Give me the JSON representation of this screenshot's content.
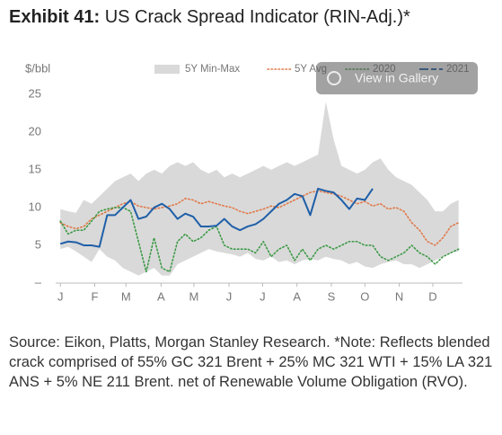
{
  "exhibit": "Exhibit 41:",
  "overlay": {
    "label": "View in Gallery"
  },
  "source": "Source: Eikon, Platts, Morgan Stanley Research. *Note: Reflects blended crack comprised of 55% GC 321 Brent + 25% MC 321 WTI + 15% LA 321 ANS + 5% NE 211 Brent. net of Renewable Volume Obligation (RVO).",
  "chart_data": {
    "type": "line",
    "title": "US Crack Spread Indicator (RIN-Adj.)*",
    "y_label": "$/bbl",
    "x": [
      1,
      2,
      3,
      4,
      5,
      6,
      7,
      8,
      9,
      10,
      11,
      12,
      13,
      14,
      15,
      16,
      17,
      18,
      19,
      20,
      21,
      22,
      23,
      24,
      25,
      26,
      27,
      28,
      29,
      30,
      31,
      32,
      33,
      34,
      35,
      36,
      37,
      38,
      39,
      40,
      41,
      42,
      43,
      44,
      45,
      46,
      47,
      48,
      49,
      50,
      51,
      52
    ],
    "xlim": [
      0.4,
      52.5
    ],
    "xticks": [
      {
        "value": 1,
        "label": "J"
      },
      {
        "value": 5.4,
        "label": "F"
      },
      {
        "value": 9.4,
        "label": "M"
      },
      {
        "value": 13.9,
        "label": "A"
      },
      {
        "value": 18.1,
        "label": "M"
      },
      {
        "value": 22.6,
        "label": "J"
      },
      {
        "value": 26.9,
        "label": "J"
      },
      {
        "value": 31.3,
        "label": "A"
      },
      {
        "value": 35.7,
        "label": "S"
      },
      {
        "value": 40,
        "label": "O"
      },
      {
        "value": 44.4,
        "label": "N"
      },
      {
        "value": 48.7,
        "label": "D"
      }
    ],
    "ylim": [
      0,
      27
    ],
    "yticks": [
      {
        "value": 0,
        "label": "–"
      },
      5,
      10,
      15,
      20,
      25
    ],
    "legend": "top",
    "series": [
      {
        "name": "5Y Min-Max",
        "color": "#d9d9d9",
        "style": "band",
        "high": [
          9.8,
          9.5,
          9.3,
          11,
          10.5,
          11.5,
          12.5,
          13.5,
          14,
          14.5,
          13.5,
          14.5,
          15,
          14.5,
          15.5,
          16,
          15.5,
          16,
          15,
          14.5,
          15,
          14,
          14.5,
          14,
          14.5,
          15,
          15.5,
          15,
          15.5,
          16,
          15.5,
          16,
          16.5,
          17,
          24,
          19,
          15.5,
          15,
          14.5,
          15,
          16,
          16.5,
          15,
          14,
          13.5,
          13,
          12,
          11,
          9.5,
          9.5,
          10.5,
          11
        ],
        "low": [
          4.5,
          4.8,
          4.2,
          3.5,
          2.8,
          4.5,
          3.5,
          3,
          2,
          1.5,
          1,
          1.5,
          2,
          1,
          1,
          2.5,
          3,
          3.5,
          4,
          4.5,
          4.2,
          4,
          3.8,
          3.5,
          4,
          3.2,
          3,
          3.5,
          2.8,
          3,
          2.5,
          3,
          3.2,
          3,
          3.5,
          3.2,
          3,
          2.5,
          2.8,
          2.2,
          2,
          2.5,
          2.8,
          3,
          2.5,
          2.5,
          2,
          2.5,
          3,
          3.5,
          4,
          4.2
        ]
      },
      {
        "name": "5Y Avg",
        "color": "#e07a4a",
        "style": "dotted",
        "values": [
          8,
          7.5,
          7.2,
          7.5,
          8.5,
          9,
          9.5,
          10,
          10.5,
          10.8,
          10.2,
          10,
          9.8,
          10,
          10.2,
          10.5,
          11.2,
          11,
          10.5,
          10.8,
          10.5,
          10.2,
          10,
          9.5,
          9.2,
          9.5,
          9.8,
          10.2,
          10,
          10.5,
          11,
          11.5,
          12,
          12.2,
          12,
          11.8,
          11.5,
          11,
          10.5,
          10.8,
          10.2,
          10.5,
          9.8,
          10,
          9.5,
          8,
          7,
          5.5,
          5,
          6,
          7.5,
          8
        ]
      },
      {
        "name": "2020",
        "color": "#3c9a46",
        "style": "dotted",
        "values": [
          8.2,
          6.5,
          7,
          7,
          8.2,
          9.5,
          9.8,
          10,
          10,
          9.5,
          5.5,
          1.5,
          6,
          2,
          1.5,
          5.5,
          6.5,
          5.5,
          6,
          7,
          7.5,
          5,
          4.5,
          4.5,
          4.5,
          4,
          5.5,
          3.5,
          4.5,
          5,
          3,
          4.5,
          3,
          4.5,
          5,
          4.5,
          5,
          5.5,
          5.5,
          5,
          5,
          3.5,
          3,
          3.5,
          4,
          5,
          4,
          3.5,
          2.5,
          3.5,
          4,
          4.5
        ]
      },
      {
        "name": "2021",
        "color": "#1f5fa8",
        "style": "solid",
        "values": [
          5.2,
          5.5,
          5.4,
          5,
          5,
          4.8,
          9,
          9,
          10,
          11,
          8.5,
          8.8,
          10,
          10.5,
          9.8,
          8.5,
          9.2,
          8.8,
          7.5,
          7.5,
          7.6,
          8.5,
          7.5,
          7,
          7.5,
          7.8,
          8.5,
          9.5,
          10.5,
          11,
          11.8,
          11.5,
          9,
          12.5,
          12.2,
          12,
          11,
          9.8,
          11.2,
          11,
          12.5,
          null,
          null,
          null,
          null,
          null,
          null,
          null,
          null,
          null,
          null,
          null
        ]
      }
    ]
  }
}
